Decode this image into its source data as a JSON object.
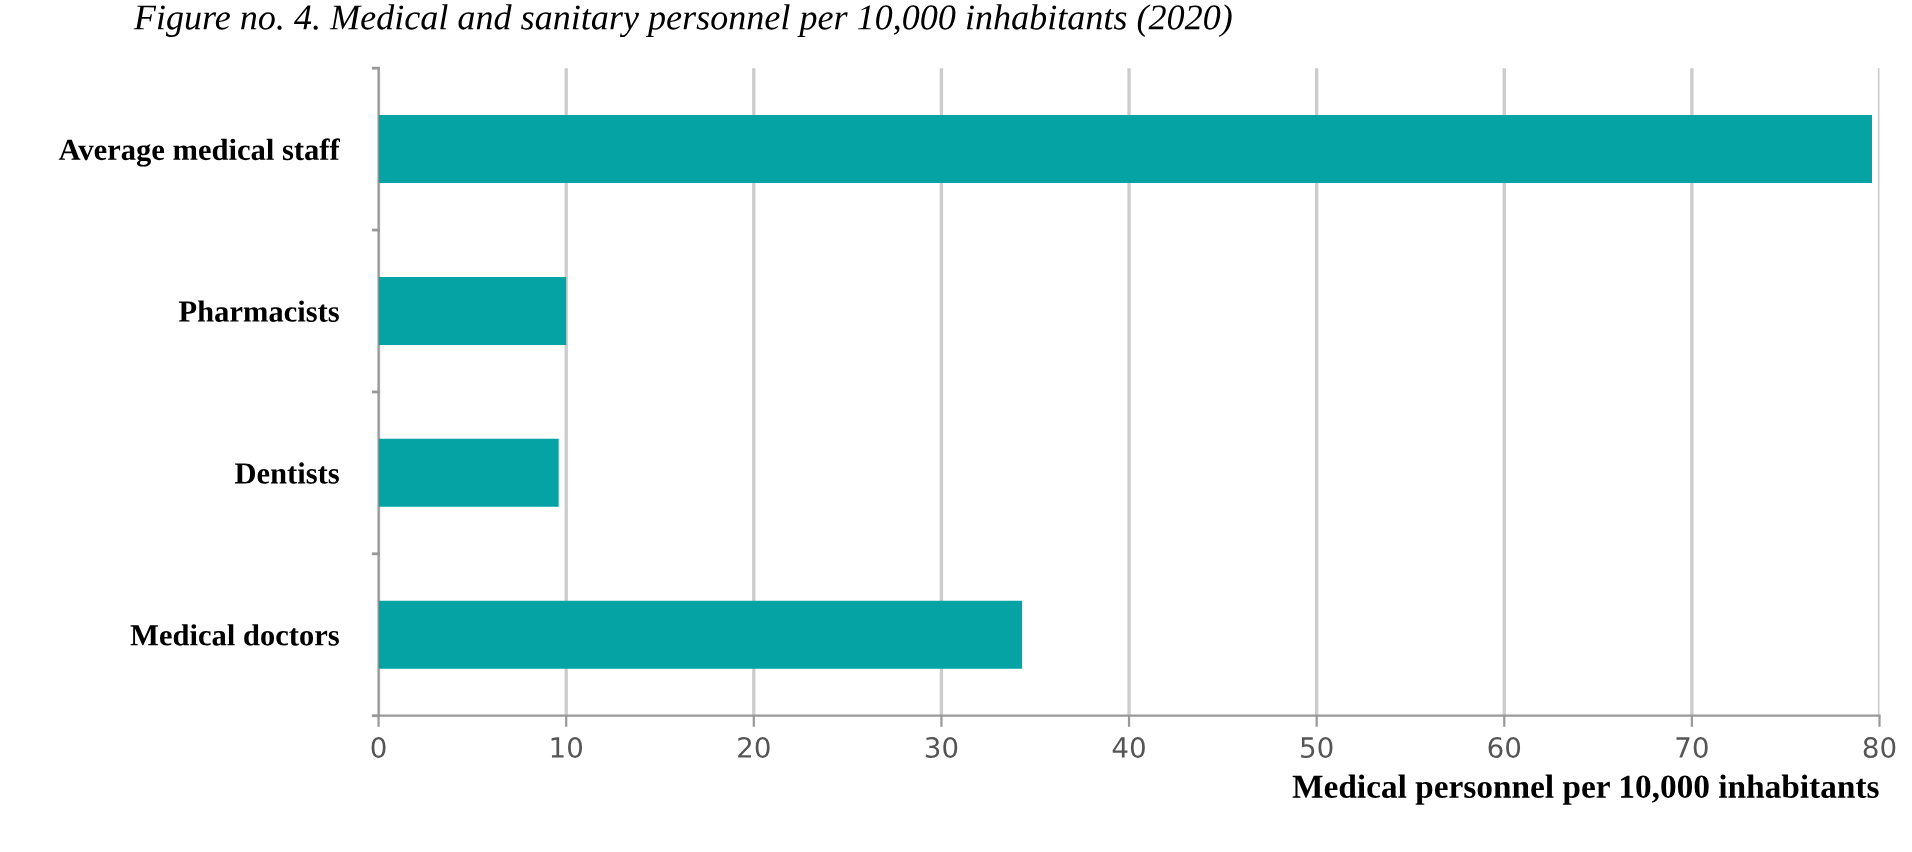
{
  "chart_data": {
    "type": "bar",
    "orientation": "horizontal",
    "title": "Figure no. 4. Medical and sanitary personnel per 10,000 inhabitants (2020)",
    "categories": [
      "Average medical staff",
      "Pharmacists",
      "Dentists",
      "Medical doctors"
    ],
    "values": [
      79.6,
      10.0,
      9.6,
      34.3
    ],
    "color": "#05a3a4",
    "xlim": [
      0,
      80
    ],
    "xticks": [
      0,
      10,
      20,
      30,
      40,
      50,
      60,
      70,
      80
    ],
    "xlabel": "Medical personnel per 10,000 inhabitants",
    "grid": "x",
    "legend": false
  }
}
